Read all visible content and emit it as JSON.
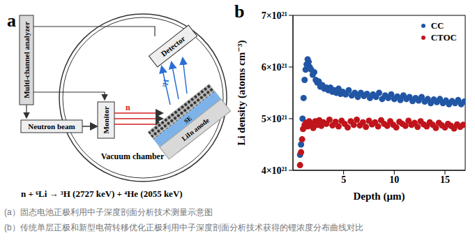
{
  "panel_a": {
    "label": "a",
    "analyzer": "Multi-channel analyzer",
    "detector": "Detector",
    "particle": "³H",
    "neutron_beam": "Neutron beam",
    "monitor": "Monitor",
    "neutron": "n",
    "electrolyte": "SE",
    "anode": "LiIn anode",
    "chamber": "Vacuum chamber",
    "reaction": "n + ⁶Li → ³H (2727 keV) + ⁴He (2055 keV)"
  },
  "chart_data": {
    "type": "scatter",
    "panel_label": "b",
    "x_label": "Depth (μm)",
    "y_label": "Li density (atoms cm⁻³)",
    "xlim": [
      0,
      17
    ],
    "xticks": [
      5,
      10,
      15
    ],
    "ylim": [
      4e+21,
      7e+21
    ],
    "yticks": [
      {
        "value": 4e+21,
        "label": "4×10²¹"
      },
      {
        "value": 5e+21,
        "label": "5×10²¹"
      },
      {
        "value": 6e+21,
        "label": "6×10²¹"
      },
      {
        "value": 7e+21,
        "label": "7×10²¹"
      }
    ],
    "grid": false,
    "legend": "upper right",
    "marker": "circle",
    "series": [
      {
        "name": "CC",
        "color": "#2156a5",
        "x": [
          0.7,
          0.8,
          0.95,
          1.05,
          1.15,
          1.25,
          1.35,
          1.45,
          1.55,
          1.65,
          1.8,
          1.95,
          2.1,
          2.25,
          2.4,
          2.55,
          2.7,
          2.9,
          3.1,
          3.3,
          3.5,
          3.7,
          3.9,
          4.1,
          4.3,
          4.5,
          4.7,
          4.9,
          5.2,
          5.5,
          5.8,
          6.1,
          6.4,
          6.7,
          7.0,
          7.3,
          7.6,
          7.9,
          8.2,
          8.5,
          8.8,
          9.1,
          9.4,
          9.7,
          10.0,
          10.3,
          10.6,
          10.9,
          11.2,
          11.5,
          11.8,
          12.1,
          12.4,
          12.7,
          13.0,
          13.3,
          13.6,
          13.9,
          14.2,
          14.5,
          14.8,
          15.1,
          15.4,
          15.7,
          16.0,
          16.3,
          16.6,
          16.9
        ],
        "values": [
          4.3e+21,
          4.5e+21,
          5e+21,
          5.4e+21,
          5.75e+21,
          5.95e+21,
          6.05e+21,
          6.15e+21,
          6.1e+21,
          6e+21,
          5.95e+21,
          5.85e+21,
          5.9e+21,
          5.75e+21,
          5.7e+21,
          5.72e+21,
          5.62e+21,
          5.65e+21,
          5.58e+21,
          5.6e+21,
          5.55e+21,
          5.6e+21,
          5.52e+21,
          5.55e+21,
          5.5e+21,
          5.58e+21,
          5.48e+21,
          5.52e+21,
          5.47e+21,
          5.55e+21,
          5.45e+21,
          5.5e+21,
          5.42e+21,
          5.5e+21,
          5.44e+21,
          5.48e+21,
          5.4e+21,
          5.47e+21,
          5.42e+21,
          5.5e+21,
          5.38e+21,
          5.45e+21,
          5.4e+21,
          5.47e+21,
          5.38e+21,
          5.43e+21,
          5.36e+21,
          5.45e+21,
          5.38e+21,
          5.42e+21,
          5.34e+21,
          5.4e+21,
          5.35e+21,
          5.42e+21,
          5.33e+21,
          5.38e+21,
          5.3e+21,
          5.37e+21,
          5.32e+21,
          5.38e+21,
          5.3e+21,
          5.35e+21,
          5.28e+21,
          5.34e+21,
          5.3e+21,
          5.36e+21,
          5.28e+21,
          5.33e+21
        ]
      },
      {
        "name": "CTOC",
        "color": "#c0141c",
        "x": [
          0.7,
          0.8,
          0.9,
          1.0,
          1.15,
          1.3,
          1.45,
          1.6,
          1.8,
          2.0,
          2.2,
          2.4,
          2.6,
          2.8,
          3.0,
          3.3,
          3.6,
          3.9,
          4.2,
          4.5,
          4.8,
          5.1,
          5.4,
          5.7,
          6.0,
          6.3,
          6.6,
          6.9,
          7.2,
          7.5,
          7.8,
          8.1,
          8.4,
          8.7,
          9.0,
          9.3,
          9.6,
          9.9,
          10.2,
          10.5,
          10.8,
          11.1,
          11.4,
          11.7,
          12.0,
          12.3,
          12.6,
          12.9,
          13.2,
          13.5,
          13.8,
          14.1,
          14.4,
          14.7,
          15.0,
          15.3,
          15.6,
          15.9,
          16.2,
          16.5,
          16.8
        ],
        "values": [
          4.1e+21,
          4.35e+21,
          4.6e+21,
          4.8e+21,
          4.88e+21,
          4.92e+21,
          4.85e+21,
          4.95e+21,
          4.9e+21,
          4.82e+21,
          4.95e+21,
          4.88e+21,
          4.97e+21,
          4.86e+21,
          4.93e+21,
          4.9e+21,
          4.98e+21,
          4.87e+21,
          4.94e+21,
          4.85e+21,
          4.96e+21,
          4.9e+21,
          4.83e+21,
          4.95e+21,
          4.88e+21,
          4.98e+21,
          4.87e+21,
          4.93e+21,
          4.84e+21,
          4.96e+21,
          4.89e+21,
          4.93e+21,
          4.85e+21,
          4.97e+21,
          4.9e+21,
          4.86e+21,
          4.95e+21,
          4.88e+21,
          4.83e+21,
          4.94e+21,
          4.9e+21,
          4.86e+21,
          4.96e+21,
          4.88e+21,
          4.92e+21,
          4.84e+21,
          4.95e+21,
          4.89e+21,
          4.85e+21,
          4.93e+21,
          4.88e+21,
          4.82e+21,
          4.92e+21,
          4.87e+21,
          4.83e+21,
          4.9e+21,
          4.86e+21,
          4.81e+21,
          4.89e+21,
          4.84e+21,
          4.88e+21
        ]
      }
    ]
  },
  "captions": [
    "(a）固态电池正极利用中子深度剖面分析技术测量示意图",
    "(b）传统单层正极和新型电荷转移优化正极利用中子深度剖面分析技术获得的锂浓度分布曲线对比"
  ]
}
